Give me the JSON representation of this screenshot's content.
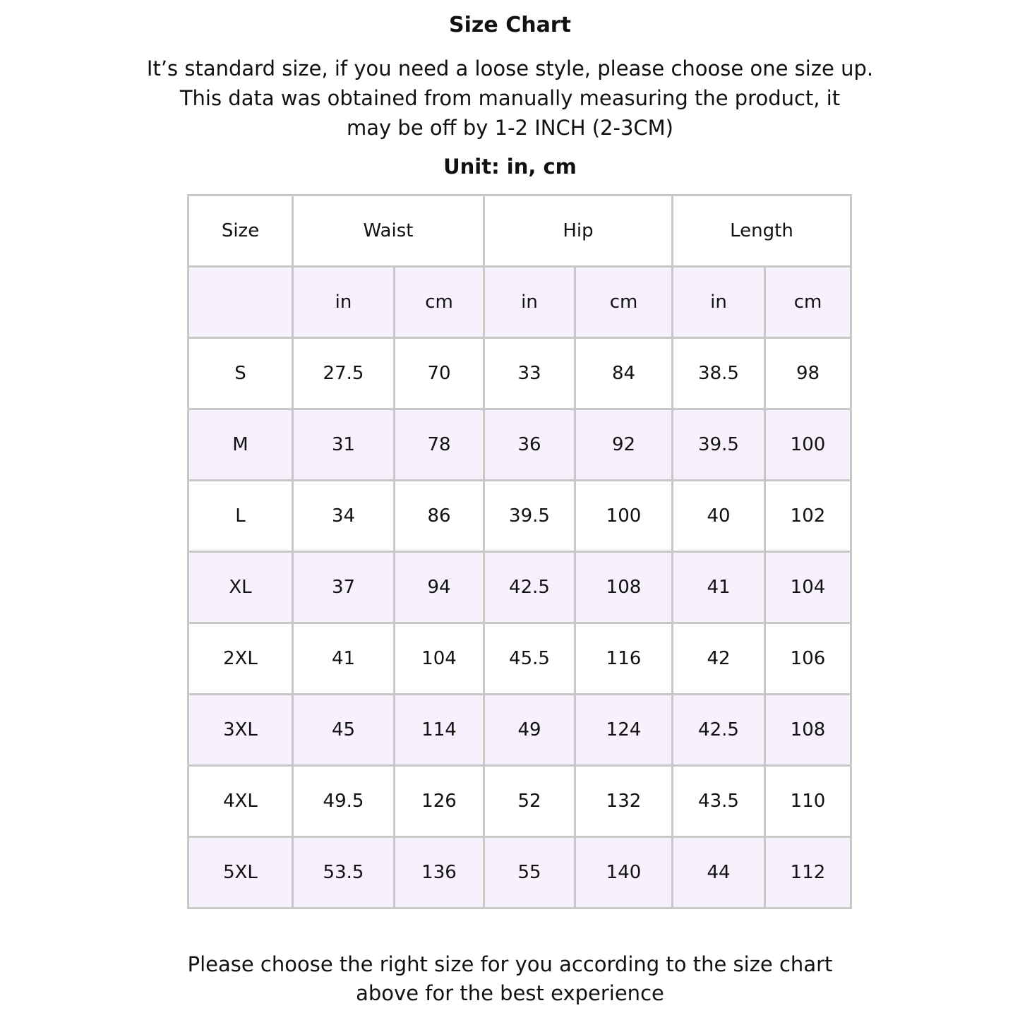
{
  "title": "Size Chart",
  "description": [
    "It’s standard size, if you need a loose style, please choose one size up.",
    "This data was obtained from manually measuring the product, it",
    "may be off by 1-2 INCH (2-3CM)"
  ],
  "unit_label": "Unit: in, cm",
  "colors": {
    "border": "#c8c8c8",
    "alt_row": "#f6f1fd",
    "text": "#111111"
  },
  "table": {
    "groups": [
      "Size",
      "Waist",
      "Hip",
      "Length"
    ],
    "subheaders": [
      "",
      "in",
      "cm",
      "in",
      "cm",
      "in",
      "cm"
    ],
    "rows": [
      [
        "S",
        "27.5",
        "70",
        "33",
        "84",
        "38.5",
        "98"
      ],
      [
        "M",
        "31",
        "78",
        "36",
        "92",
        "39.5",
        "100"
      ],
      [
        "L",
        "34",
        "86",
        "39.5",
        "100",
        "40",
        "102"
      ],
      [
        "XL",
        "37",
        "94",
        "42.5",
        "108",
        "41",
        "104"
      ],
      [
        "2XL",
        "41",
        "104",
        "45.5",
        "116",
        "42",
        "106"
      ],
      [
        "3XL",
        "45",
        "114",
        "49",
        "124",
        "42.5",
        "108"
      ],
      [
        "4XL",
        "49.5",
        "126",
        "52",
        "132",
        "43.5",
        "110"
      ],
      [
        "5XL",
        "53.5",
        "136",
        "55",
        "140",
        "44",
        "112"
      ]
    ]
  },
  "footer": [
    "Please choose the right size for you according to the size chart",
    "above for the best experience"
  ]
}
